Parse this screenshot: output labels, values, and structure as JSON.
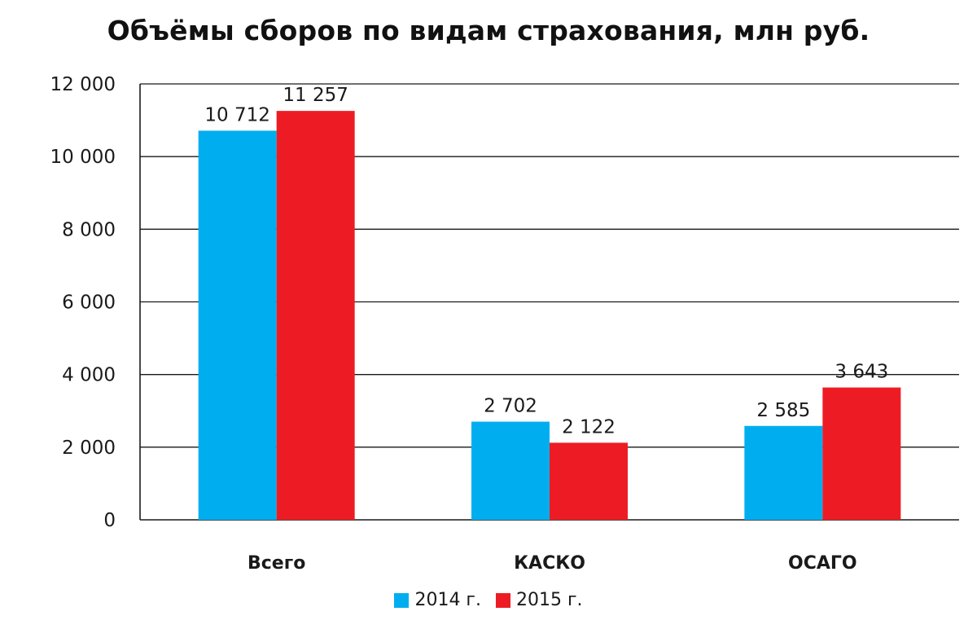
{
  "chart_data": {
    "type": "bar",
    "title": "Объёмы сборов по видам страхования, млн руб.",
    "xlabel": "",
    "ylabel": "",
    "categories": [
      "Всего",
      "КАСКО",
      "ОСАГО"
    ],
    "series": [
      {
        "name": "2014 г.",
        "color": "#00AEEF",
        "values": [
          10712,
          2702,
          2585
        ],
        "labels": [
          "10 712",
          "2 702",
          "2 585"
        ]
      },
      {
        "name": "2015 г.",
        "color": "#ED1C24",
        "values": [
          11257,
          2122,
          3643
        ],
        "labels": [
          "11 257",
          "2 122",
          "3 643"
        ]
      }
    ],
    "ylim": [
      0,
      12000
    ],
    "yticks": [
      0,
      2000,
      4000,
      6000,
      8000,
      10000,
      12000
    ],
    "ytick_labels": [
      "0",
      "2 000",
      "4 000",
      "6 000",
      "8 000",
      "10 000",
      "12 000"
    ],
    "grid": true,
    "legend_position": "bottom-center"
  }
}
